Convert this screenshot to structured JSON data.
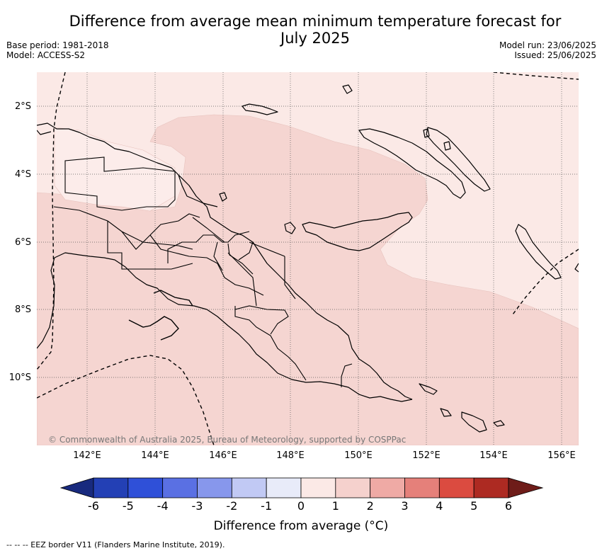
{
  "title_line1": "Difference from average mean minimum temperature forecast for",
  "title_line2": "July 2025",
  "base_period": "Base period: 1981-2018",
  "model": "Model: ACCESS-S2",
  "model_run": "Model run: 23/06/2025",
  "issued": "Issued: 25/06/2025",
  "map": {
    "lon_range": [
      140.6,
      156.6
    ],
    "lat_range": [
      -12.0,
      -1.0
    ],
    "lat_labels": [
      "2°S",
      "4°S",
      "6°S",
      "8°S",
      "10°S"
    ],
    "lon_labels": [
      "142°E",
      "144°E",
      "146°E",
      "148°E",
      "150°E",
      "152°E",
      "154°E",
      "156°E"
    ],
    "copyright": "© Commonwealth of Australia 2025, Bureau of Meteorology, supported by COSPPac",
    "fill_colors": {
      "light": "#fbe9e6",
      "mid": "#f5d5d1"
    },
    "gridline_style": "dotted"
  },
  "colorbar": {
    "ticks": [
      "-6",
      "-5",
      "-4",
      "-3",
      "-2",
      "-1",
      "0",
      "1",
      "2",
      "3",
      "4",
      "5",
      "6"
    ],
    "colors": [
      "#182a7e",
      "#2340b5",
      "#2f50d8",
      "#5a70e3",
      "#8797ec",
      "#c1c9f4",
      "#e8ebf9",
      "#fbe9e6",
      "#f5d1cd",
      "#efaaa5",
      "#e5807a",
      "#db4b40",
      "#ad2a22",
      "#6e1c19"
    ],
    "label": "Difference from average (°C)"
  },
  "footnote": "-- -- -- EEZ border V11 (Flanders Marine Institute, 2019)."
}
